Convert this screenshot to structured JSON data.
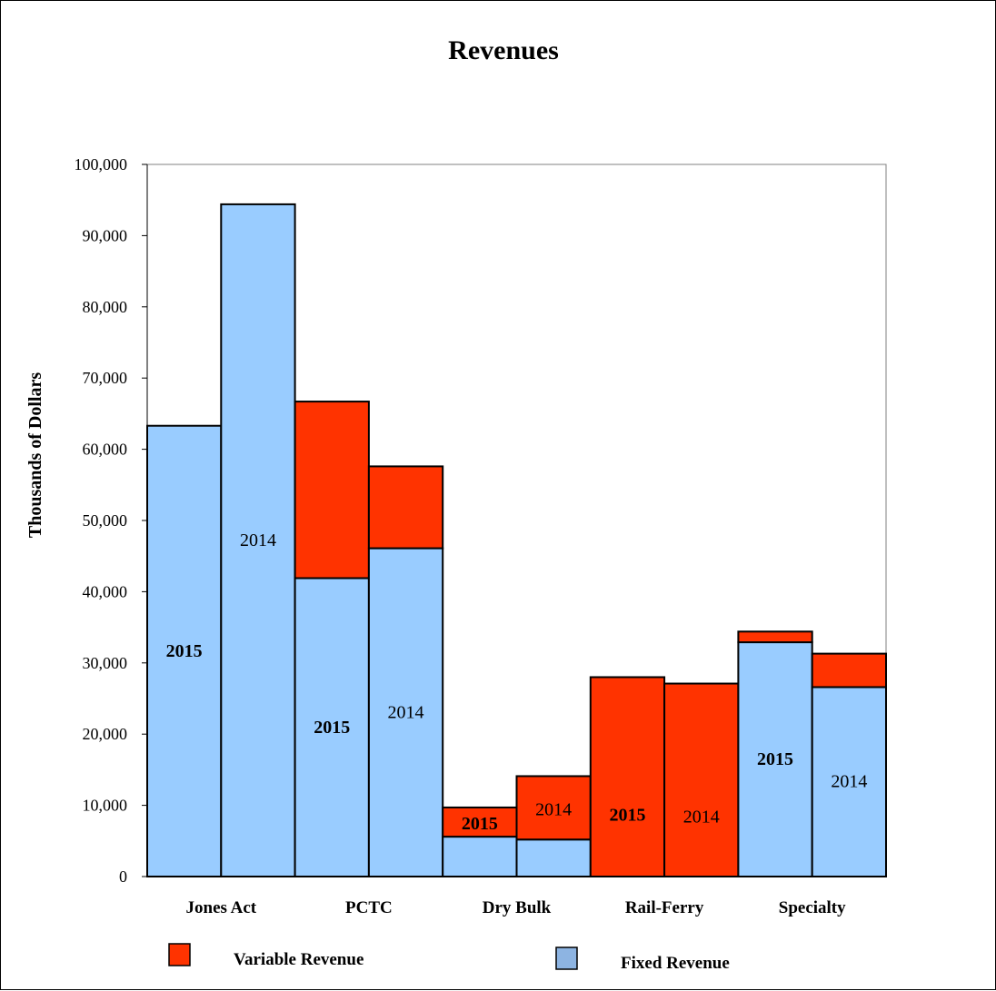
{
  "chart_data": {
    "type": "bar",
    "subtype": "stacked-grouped",
    "title": "Revenues",
    "ylabel": "Thousands of Dollars",
    "xlabel": "",
    "ylim": [
      0,
      100000
    ],
    "yticks": [
      0,
      10000,
      20000,
      30000,
      40000,
      50000,
      60000,
      70000,
      80000,
      90000,
      100000
    ],
    "ytick_labels": [
      "0",
      "10,000",
      "20,000",
      "30,000",
      "40,000",
      "50,000",
      "60,000",
      "70,000",
      "80,000",
      "90,000",
      "100,000"
    ],
    "categories": [
      "Jones Act",
      "PCTC",
      "Dry Bulk",
      "Rail-Ferry",
      "Specialty"
    ],
    "series": [
      {
        "name": "Fixed Revenue",
        "color": "#99ccff",
        "values_2015": [
          63300,
          41900,
          5600,
          0,
          32900
        ],
        "values_2014": [
          94400,
          46100,
          5200,
          0,
          26600
        ]
      },
      {
        "name": "Variable Revenue",
        "color": "#ff3300",
        "values_2015": [
          0,
          24800,
          4100,
          28000,
          1500
        ],
        "values_2014": [
          0,
          11500,
          8900,
          27100,
          4700
        ]
      }
    ],
    "bar_labels": [
      [
        "2015",
        "2014"
      ],
      [
        "2015",
        "2014"
      ],
      [
        "2015",
        "2014"
      ],
      [
        "2015",
        "2014"
      ],
      [
        "2015",
        "2014"
      ]
    ],
    "legend": [
      {
        "label": "Variable Revenue",
        "color": "#ff3300"
      },
      {
        "label": "Fixed Revenue",
        "color": "#8db4e2"
      }
    ],
    "grid": false,
    "legend_position": "bottom"
  }
}
